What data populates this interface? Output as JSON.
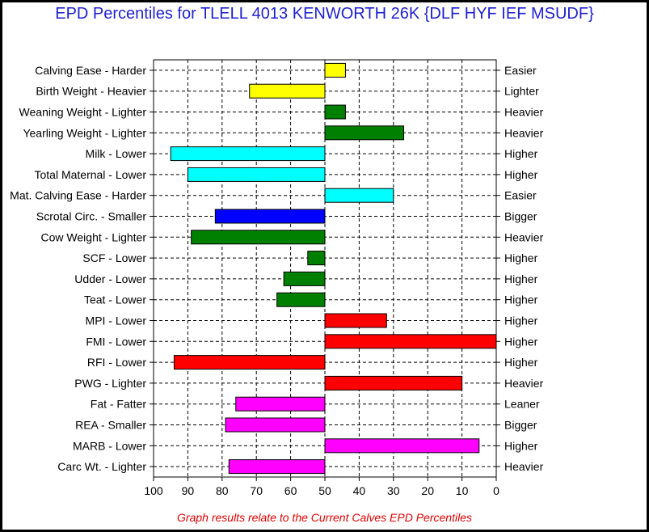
{
  "title": "EPD Percentiles for TLELL 4013 KENWORTH 26K {DLF HYF IEF MSUDF}",
  "footnote": "Graph results relate to the Current Calves EPD Percentiles",
  "chart_data": {
    "type": "bar",
    "orientation": "horizontal",
    "baseline": 50,
    "xlim": [
      100,
      0
    ],
    "xticks": [
      100,
      90,
      80,
      70,
      60,
      50,
      40,
      30,
      20,
      10,
      0
    ],
    "grid": true,
    "traits": [
      {
        "left_label": "Calving Ease - Harder",
        "right_label": "Easier",
        "value": 44,
        "color": "#ffff00"
      },
      {
        "left_label": "Birth Weight - Heavier",
        "right_label": "Lighter",
        "value": 72,
        "color": "#ffff00"
      },
      {
        "left_label": "Weaning Weight - Lighter",
        "right_label": "Heavier",
        "value": 44,
        "color": "#008000"
      },
      {
        "left_label": "Yearling Weight - Lighter",
        "right_label": "Heavier",
        "value": 27,
        "color": "#008000"
      },
      {
        "left_label": "Milk - Lower",
        "right_label": "Higher",
        "value": 95,
        "color": "#00ffff"
      },
      {
        "left_label": "Total Maternal - Lower",
        "right_label": "Higher",
        "value": 90,
        "color": "#00ffff"
      },
      {
        "left_label": "Mat. Calving Ease - Harder",
        "right_label": "Easier",
        "value": 30,
        "color": "#00ffff"
      },
      {
        "left_label": "Scrotal Circ. - Smaller",
        "right_label": "Bigger",
        "value": 82,
        "color": "#0000ff"
      },
      {
        "left_label": "Cow Weight - Lighter",
        "right_label": "Heavier",
        "value": 89,
        "color": "#008000"
      },
      {
        "left_label": "SCF - Lower",
        "right_label": "Higher",
        "value": 55,
        "color": "#008000"
      },
      {
        "left_label": "Udder - Lower",
        "right_label": "Higher",
        "value": 62,
        "color": "#008000"
      },
      {
        "left_label": "Teat - Lower",
        "right_label": "Higher",
        "value": 64,
        "color": "#008000"
      },
      {
        "left_label": "MPI - Lower",
        "right_label": "Higher",
        "value": 32,
        "color": "#ff0000"
      },
      {
        "left_label": "FMI - Lower",
        "right_label": "Higher",
        "value": 0,
        "color": "#ff0000"
      },
      {
        "left_label": "RFI - Lower",
        "right_label": "Higher",
        "value": 94,
        "color": "#ff0000"
      },
      {
        "left_label": "PWG - Lighter",
        "right_label": "Heavier",
        "value": 10,
        "color": "#ff0000"
      },
      {
        "left_label": "Fat - Fatter",
        "right_label": "Leaner",
        "value": 76,
        "color": "#ff00ff"
      },
      {
        "left_label": "REA - Smaller",
        "right_label": "Bigger",
        "value": 79,
        "color": "#ff00ff"
      },
      {
        "left_label": "MARB - Lower",
        "right_label": "Higher",
        "value": 5,
        "color": "#ff00ff"
      },
      {
        "left_label": "Carc Wt. - Lighter",
        "right_label": "Heavier",
        "value": 78,
        "color": "#ff00ff"
      }
    ]
  }
}
